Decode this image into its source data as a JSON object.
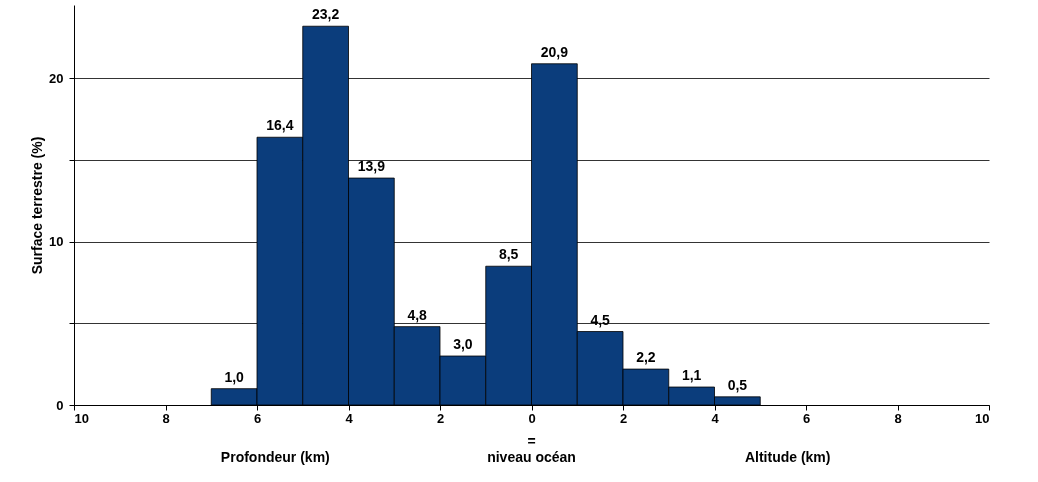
{
  "chart_data": {
    "type": "histogram",
    "ylabel": "Surface terrestre (%)",
    "bins": [
      -7,
      -6,
      -5,
      -4,
      -3,
      -2,
      -1,
      0,
      1,
      2,
      3,
      4,
      5
    ],
    "values": [
      1.0,
      16.4,
      23.2,
      13.9,
      4.8,
      3.0,
      8.5,
      20.9,
      4.5,
      2.2,
      1.1,
      0.5
    ],
    "value_labels": [
      "1,0",
      "16,4",
      "23,2",
      "13,9",
      "4,8",
      "3,0",
      "8,5",
      "20,9",
      "4,5",
      "2,2",
      "1,1",
      "0,5"
    ],
    "color": "#0b3d7c",
    "xlim": [
      -10,
      10
    ],
    "xticks": [
      {
        "value": -10,
        "label": "10"
      },
      {
        "value": -8,
        "label": "8"
      },
      {
        "value": -6,
        "label": "6"
      },
      {
        "value": -4,
        "label": "4"
      },
      {
        "value": -2,
        "label": "2"
      },
      0,
      2,
      4,
      6,
      8,
      10
    ],
    "ylim": [
      0,
      24.5
    ],
    "yticks": [
      0,
      {
        "value": 5,
        "label": null
      },
      10,
      {
        "value": 15,
        "label": null
      },
      20
    ],
    "grid": "y",
    "annotations": [
      "Profondeur (km)",
      "=\nniveau océan",
      "Altitude (km)"
    ]
  }
}
